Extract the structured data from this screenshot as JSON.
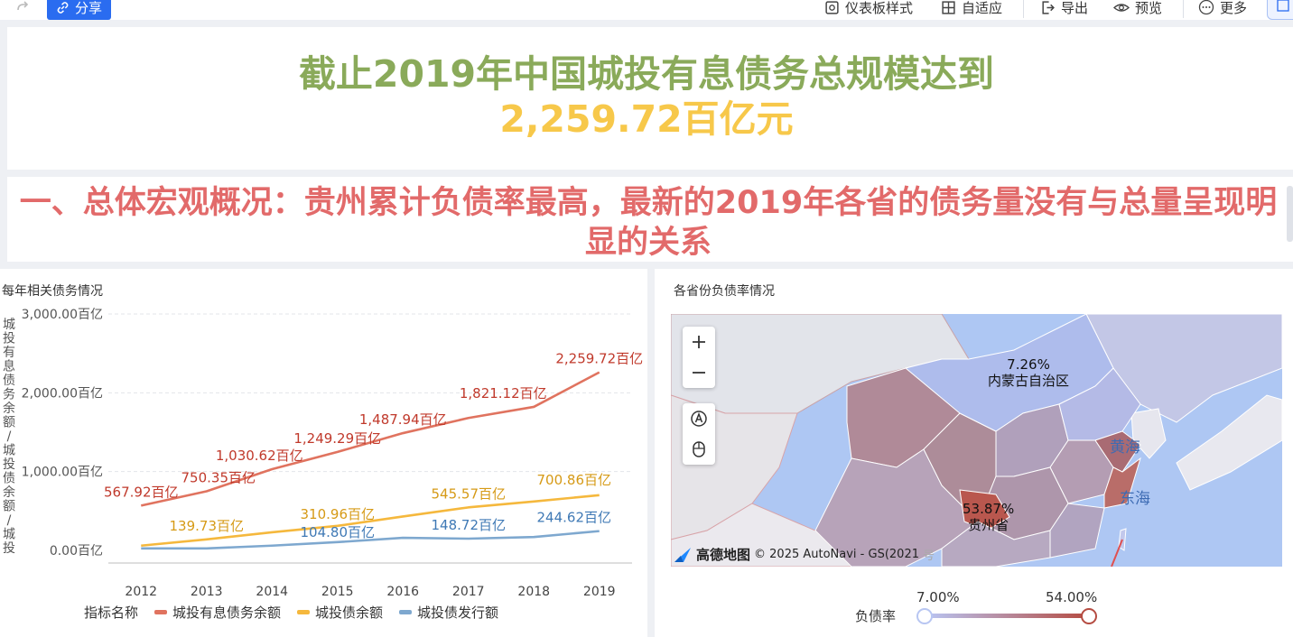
{
  "toolbar": {
    "share_label": "分享",
    "dashboard_style_label": "仪表板样式",
    "adaptive_label": "自适应",
    "export_label": "导出",
    "preview_label": "预览",
    "more_label": "更多"
  },
  "header": {
    "line1": "截止2019年中国城投有息债务总规模达到",
    "line2": "2,259.72百亿元"
  },
  "section": {
    "title": "一、总体宏观概况：贵州累计负债率最高，最新的2019年各省的债务量没有与总量呈现明显的关系"
  },
  "line_card": {
    "title": "每年相关债务情况",
    "y_axis_label": "城投有息债务余额/城投债余额/城投...",
    "legend_title": "指标名称"
  },
  "chart_data": {
    "type": "line",
    "x": [
      "2012",
      "2013",
      "2014",
      "2015",
      "2016",
      "2017",
      "2018",
      "2019"
    ],
    "ylim": [
      0,
      3000
    ],
    "y_ticks": [
      "0.00百亿",
      "1,000.00百亿",
      "2,000.00百亿",
      "3,000.00百亿"
    ],
    "grid": true,
    "legend_position": "bottom",
    "series": [
      {
        "name": "城投有息债务余额",
        "color": "#e0735f",
        "values": [
          567.92,
          750.35,
          1030.62,
          1249.29,
          1487.94,
          1680.0,
          1821.12,
          2259.72
        ],
        "labels": [
          "567.92百亿",
          "750.35百亿",
          "1,030.62百亿",
          "1,249.29百亿",
          "1,487.94百亿",
          "",
          "1,821.12百亿",
          "2,259.72百亿"
        ]
      },
      {
        "name": "城投债余额",
        "color": "#f5b83d",
        "values": [
          60,
          139.73,
          230,
          310.96,
          430,
          545.57,
          620,
          700.86
        ],
        "labels": [
          "",
          "139.73百亿",
          "",
          "310.96百亿",
          "",
          "545.57百亿",
          "",
          "700.86百亿"
        ]
      },
      {
        "name": "城投债发行额",
        "color": "#7ea8cf",
        "values": [
          25,
          25,
          60,
          104.8,
          160,
          148.72,
          170,
          244.62
        ],
        "labels": [
          "",
          "",
          "",
          "104.80百亿",
          "",
          "148.72百亿",
          "",
          "244.62百亿"
        ]
      }
    ]
  },
  "map_card": {
    "title": "各省份负债率情况",
    "labels": [
      {
        "value": "7.26%",
        "name": "内蒙古自治区"
      },
      {
        "value": "53.87%",
        "name": "贵州省"
      }
    ],
    "seas": [
      "黄海",
      "东海"
    ],
    "attribution_brand": "高德地图",
    "attribution_text": "© 2025 AutoNavi - GS(2021",
    "attribution_tail": "号",
    "visual_map": {
      "label": "负债率",
      "min": "7.00%",
      "max": "54.00%",
      "low_color": "#b9c6f5",
      "high_color": "#b54c42"
    }
  }
}
